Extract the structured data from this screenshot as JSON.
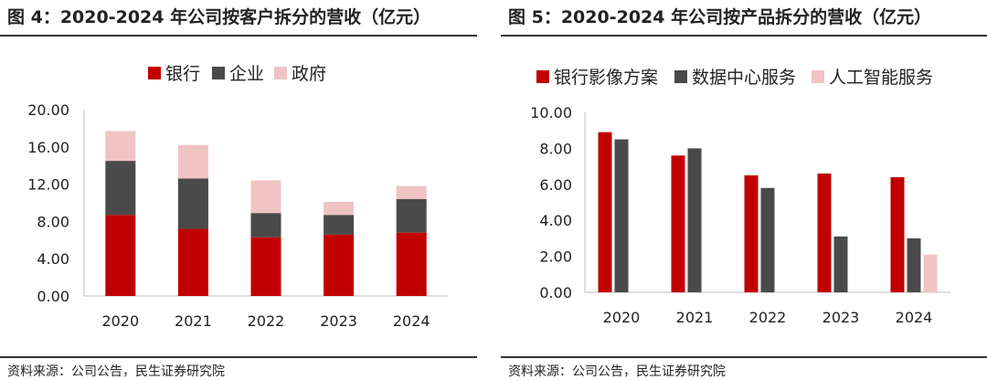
{
  "colors": {
    "red": "#c00000",
    "dark": "#4a4a4a",
    "pink": "#f0c4c4",
    "axis": "#bfbfbf"
  },
  "source_text": "资料来源：公司公告，民生证券研究院",
  "chart_data": [
    {
      "title": "图 4：2020-2024 年公司按客户拆分的营收（亿元）",
      "type": "bar",
      "stacked": true,
      "categories": [
        "2020",
        "2021",
        "2022",
        "2023",
        "2024"
      ],
      "series": [
        {
          "name": "银行",
          "values": [
            8.7,
            7.2,
            6.3,
            6.6,
            6.8
          ]
        },
        {
          "name": "企业",
          "values": [
            5.8,
            5.4,
            2.6,
            2.1,
            3.6
          ]
        },
        {
          "name": "政府",
          "values": [
            3.2,
            3.6,
            3.5,
            1.4,
            1.4
          ]
        }
      ],
      "ylim": [
        0,
        20
      ],
      "yticks": [
        "0.00",
        "4.00",
        "8.00",
        "12.00",
        "16.00",
        "20.00"
      ],
      "legend_position": "top"
    },
    {
      "title": "图 5：2020-2024 年公司按产品拆分的营收（亿元）",
      "type": "bar",
      "stacked": false,
      "categories": [
        "2020",
        "2021",
        "2022",
        "2023",
        "2024"
      ],
      "series": [
        {
          "name": "银行影像方案",
          "values": [
            8.9,
            7.6,
            6.5,
            6.6,
            6.4
          ]
        },
        {
          "name": "数据中心服务",
          "values": [
            8.5,
            8.0,
            5.8,
            3.1,
            3.0
          ]
        },
        {
          "name": "人工智能服务",
          "values": [
            0,
            0,
            0,
            0,
            2.1
          ]
        }
      ],
      "ylim": [
        0,
        10
      ],
      "yticks": [
        "0.00",
        "2.00",
        "4.00",
        "6.00",
        "8.00",
        "10.00"
      ],
      "legend_position": "top"
    }
  ]
}
